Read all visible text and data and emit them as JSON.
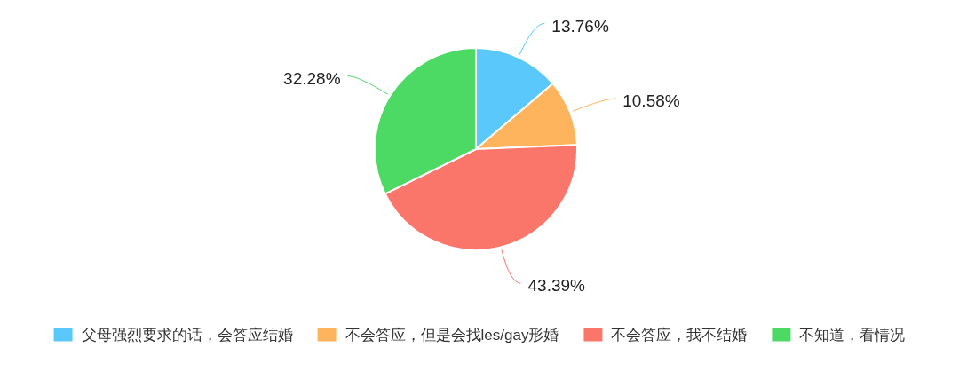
{
  "chart_data": {
    "type": "pie",
    "categories": [
      "父母强烈要求的话，会答应结婚",
      "不会答应，但是会找les/gay形婚",
      "不会答应，我不结婚",
      "不知道，看情况"
    ],
    "values": [
      13.76,
      10.58,
      43.39,
      32.28
    ],
    "colors": [
      "#5ac8fa",
      "#fdb45c",
      "#fb766a",
      "#4cd964"
    ],
    "value_labels": [
      "13.76%",
      "10.58%",
      "43.39%",
      "32.28%"
    ],
    "legend": "bottom"
  }
}
